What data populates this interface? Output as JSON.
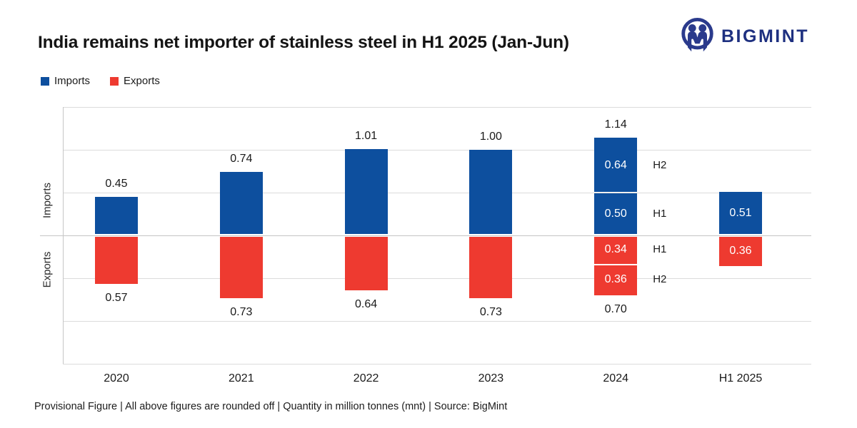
{
  "header": {
    "title": "India remains net importer of stainless steel in H1 2025 (Jan-Jun)",
    "logo_text": "BIGMINT"
  },
  "legend": {
    "imports_label": "Imports",
    "exports_label": "Exports"
  },
  "axis": {
    "imports_label": "Imports",
    "exports_label": "Exports"
  },
  "footer": {
    "note": "Provisional Figure | All above figures are rounded off | Quantity in million tonnes (mnt) | Source: BigMint"
  },
  "colors": {
    "imports": "#0d4f9e",
    "exports": "#ee3a30",
    "logo_navy": "#2a3a8c"
  },
  "chart_data": {
    "type": "bar",
    "subtype": "diverging_stacked_columns",
    "title": "India remains net importer of stainless steel in H1 2025 (Jan-Jun)",
    "unit": "million tonnes (mnt)",
    "categories": [
      "2020",
      "2021",
      "2022",
      "2023",
      "2024",
      "H1 2025"
    ],
    "ylim": [
      -1.5,
      1.5
    ],
    "gridline_step": 0.5,
    "grid": true,
    "legend_position": "top-left",
    "series": [
      {
        "name": "Imports",
        "direction": "up",
        "color": "#0d4f9e",
        "totals": [
          0.45,
          0.74,
          1.01,
          1.0,
          1.14,
          0.51
        ]
      },
      {
        "name": "Exports",
        "direction": "down",
        "color": "#ee3a30",
        "totals": [
          0.57,
          0.73,
          0.64,
          0.73,
          0.7,
          0.36
        ]
      }
    ],
    "columns": [
      {
        "category": "2020",
        "imports": {
          "total_label": "0.45",
          "segments": [
            {
              "value": 0.45
            }
          ]
        },
        "exports": {
          "total_label": "0.57",
          "segments": [
            {
              "value": 0.57
            }
          ]
        }
      },
      {
        "category": "2021",
        "imports": {
          "total_label": "0.74",
          "segments": [
            {
              "value": 0.74
            }
          ]
        },
        "exports": {
          "total_label": "0.73",
          "segments": [
            {
              "value": 0.73
            }
          ]
        }
      },
      {
        "category": "2022",
        "imports": {
          "total_label": "1.01",
          "segments": [
            {
              "value": 1.01
            }
          ]
        },
        "exports": {
          "total_label": "0.64",
          "segments": [
            {
              "value": 0.64
            }
          ]
        }
      },
      {
        "category": "2023",
        "imports": {
          "total_label": "1.00",
          "segments": [
            {
              "value": 1.0
            }
          ]
        },
        "exports": {
          "total_label": "0.73",
          "segments": [
            {
              "value": 0.73
            }
          ]
        }
      },
      {
        "category": "2024",
        "imports": {
          "total_label": "1.14",
          "segments": [
            {
              "value": 0.64,
              "label": "0.64",
              "side": "H2"
            },
            {
              "value": 0.5,
              "label": "0.50",
              "side": "H1"
            }
          ]
        },
        "exports": {
          "total_label": "0.70",
          "segments": [
            {
              "value": 0.34,
              "label": "0.34",
              "side": "H1"
            },
            {
              "value": 0.36,
              "label": "0.36",
              "side": "H2"
            }
          ]
        }
      },
      {
        "category": "H1 2025",
        "imports": {
          "segments": [
            {
              "value": 0.51,
              "label": "0.51"
            }
          ]
        },
        "exports": {
          "segments": [
            {
              "value": 0.36,
              "label": "0.36"
            }
          ]
        }
      }
    ]
  }
}
